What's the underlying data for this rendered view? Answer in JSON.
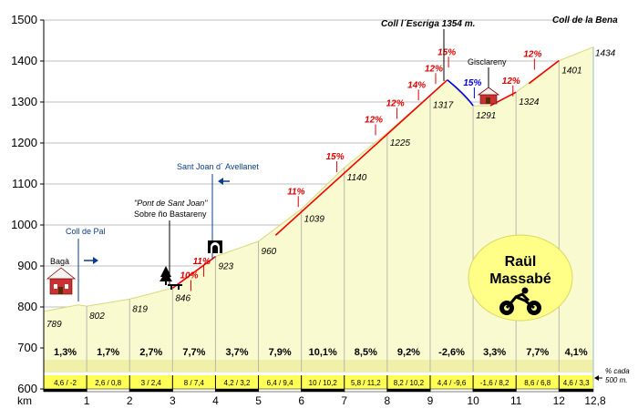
{
  "chart_data": {
    "type": "area",
    "title": "",
    "xlabel": "km",
    "ylabel": "",
    "xlim": [
      0,
      12.8
    ],
    "ylim": [
      600,
      1500
    ],
    "y_ticks": [
      600,
      700,
      800,
      900,
      1000,
      1100,
      1200,
      1300,
      1400,
      1500
    ],
    "x_ticks": [
      "0",
      "1",
      "2",
      "3",
      "4",
      "5",
      "6",
      "7",
      "8",
      "9",
      "10",
      "11",
      "12",
      "12,8"
    ],
    "profile": [
      {
        "km": 0,
        "alt": 789
      },
      {
        "km": 0.8,
        "alt": 805
      },
      {
        "km": 1,
        "alt": 802
      },
      {
        "km": 2,
        "alt": 819
      },
      {
        "km": 3,
        "alt": 846
      },
      {
        "km": 4,
        "alt": 923
      },
      {
        "km": 5,
        "alt": 960
      },
      {
        "km": 6,
        "alt": 1039
      },
      {
        "km": 7,
        "alt": 1140
      },
      {
        "km": 8,
        "alt": 1225
      },
      {
        "km": 9,
        "alt": 1317
      },
      {
        "km": 9.4,
        "alt": 1354
      },
      {
        "km": 10,
        "alt": 1291
      },
      {
        "km": 10.4,
        "alt": 1291
      },
      {
        "km": 11,
        "alt": 1324
      },
      {
        "km": 12,
        "alt": 1401
      },
      {
        "km": 12.8,
        "alt": 1434
      }
    ],
    "point_labels": [
      {
        "km": 0,
        "text": "789"
      },
      {
        "km": 1,
        "text": "802"
      },
      {
        "km": 2,
        "text": "819"
      },
      {
        "km": 3,
        "text": "846"
      },
      {
        "km": 4,
        "text": "923"
      },
      {
        "km": 5,
        "text": "960"
      },
      {
        "km": 6,
        "text": "1039"
      },
      {
        "km": 7,
        "text": "1140"
      },
      {
        "km": 8,
        "text": "1225"
      },
      {
        "km": 9,
        "text": "1317"
      },
      {
        "km": 10,
        "text": "1291"
      },
      {
        "km": 11,
        "text": "1324"
      },
      {
        "km": 12,
        "text": "1401"
      },
      {
        "km": 12.8,
        "text": "1434"
      }
    ],
    "segment_averages": [
      "1,3%",
      "1,7%",
      "2,7%",
      "7,7%",
      "3,7%",
      "7,9%",
      "10,1%",
      "8,5%",
      "9,2%",
      "-2,6%",
      "3,3%",
      "7,7%",
      "4,1%"
    ],
    "segment_subslopes": [
      "4,6 / -2",
      "2,6 / 0,8",
      "3 / 2,4",
      "8 / 7,4",
      "4,2 / 3,2",
      "6,4 / 9,4",
      "10 / 10,2",
      "5,8 / 11,2",
      "8,2 / 10,2",
      "4,4 / -9,6",
      "-1,6 / 8,2",
      "8,6 / 6,8",
      "4,6 / 3,3"
    ],
    "max_slopes": [
      {
        "km": 3.3,
        "alt": 870,
        "text": "10%",
        "color": "#dd0000"
      },
      {
        "km": 3.6,
        "alt": 905,
        "text": "11%",
        "color": "#dd0000"
      },
      {
        "km": 5.8,
        "alt": 1075,
        "text": "11%",
        "color": "#dd0000"
      },
      {
        "km": 6.7,
        "alt": 1160,
        "text": "15%",
        "color": "#dd0000"
      },
      {
        "km": 7.6,
        "alt": 1250,
        "text": "12%",
        "color": "#dd0000"
      },
      {
        "km": 8.1,
        "alt": 1290,
        "text": "12%",
        "color": "#dd0000"
      },
      {
        "km": 8.6,
        "alt": 1335,
        "text": "14%",
        "color": "#dd0000"
      },
      {
        "km": 9.0,
        "alt": 1375,
        "text": "12%",
        "color": "#dd0000"
      },
      {
        "km": 9.3,
        "alt": 1415,
        "text": "15%",
        "color": "#dd0000"
      },
      {
        "km": 9.9,
        "alt": 1340,
        "text": "15%",
        "color": "#0000dd"
      },
      {
        "km": 10.8,
        "alt": 1345,
        "text": "12%",
        "color": "#dd0000"
      },
      {
        "km": 11.3,
        "alt": 1410,
        "text": "12%",
        "color": "#dd0000"
      }
    ],
    "ruler_note": [
      "% cada",
      "500 m."
    ]
  },
  "annotations": {
    "summit": "Coll  l´Escriga    1354 m.",
    "end": "Coll de la Bena",
    "start_town": "Bagà",
    "coll_de_pal": "Coll de Pal",
    "pont_line1": "\"Pont de Sant Joan\"",
    "pont_line2": "Sobre ño Bastareny",
    "sant_joan": "Sant Joan d´ Avellanet",
    "gisclareny": "Gisclareny"
  },
  "badge": {
    "line1": "Raül",
    "line2": "Massabé"
  },
  "colors": {
    "fill": "#fafad0",
    "fill_edge": "#e8e890",
    "climb": "#ee0000",
    "descent": "#0000ee",
    "grid": "#bfbfbf",
    "badge": "#ffff88",
    "link": "#0a3c8c"
  }
}
